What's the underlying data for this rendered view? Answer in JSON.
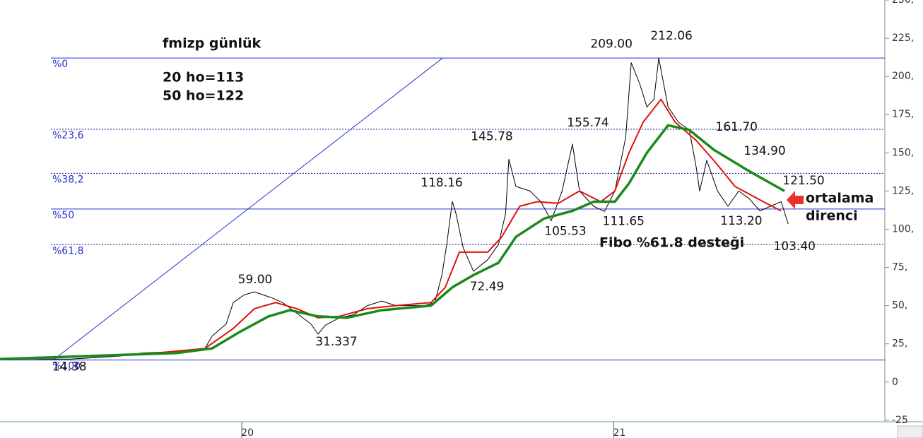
{
  "chart_data": {
    "type": "line",
    "title": "fmizp günlük",
    "notes": [
      "20 ho=113",
      "50 ho=122"
    ],
    "callouts": [
      "ortalama",
      "direnci",
      "Fibo %61.8 desteği"
    ],
    "xlim": [
      2019.35,
      2021.725
    ],
    "xticks": [
      {
        "value": 2020,
        "label": "20"
      },
      {
        "value": 2021,
        "label": "21"
      }
    ],
    "ylim": [
      -26,
      250
    ],
    "yticks": [
      {
        "value": 250,
        "label": "250,"
      },
      {
        "value": 225,
        "label": "225,"
      },
      {
        "value": 200,
        "label": "200,"
      },
      {
        "value": 175,
        "label": "175,"
      },
      {
        "value": 150,
        "label": "150,"
      },
      {
        "value": 125,
        "label": "125,"
      },
      {
        "value": 100,
        "label": "100,"
      },
      {
        "value": 75,
        "label": "75,"
      },
      {
        "value": 50,
        "label": "50,"
      },
      {
        "value": 25,
        "label": "25,"
      },
      0,
      -25
    ],
    "series": [
      {
        "color": "#000000",
        "width": 1,
        "x": [
          2019.35,
          2019.54,
          2019.673,
          2019.73,
          2019.825,
          2019.901,
          2019.92,
          2019.958,
          2019.977,
          2020.006,
          2020.034,
          2020.082,
          2020.11,
          2020.148,
          2020.186,
          2020.205,
          2020.224,
          2020.262,
          2020.3,
          2020.338,
          2020.376,
          2020.414,
          2020.452,
          2020.49,
          2020.519,
          2020.538,
          2020.551,
          2020.566,
          2020.576,
          2020.595,
          2020.623,
          2020.661,
          2020.69,
          2020.709,
          2020.718,
          2020.737,
          2020.775,
          2020.804,
          2020.832,
          2020.861,
          2020.889,
          2020.908,
          2020.946,
          2020.975,
          2021.003,
          2021.032,
          2021.047,
          2021.07,
          2021.089,
          2021.108,
          2021.121,
          2021.146,
          2021.174,
          2021.203,
          2021.222,
          2021.231,
          2021.25,
          2021.279,
          2021.307,
          2021.336,
          2021.364,
          2021.393,
          2021.421,
          2021.45,
          2021.469
        ],
        "values": [
          15,
          15,
          17,
          19,
          20,
          22,
          30,
          38,
          52,
          57,
          59,
          55,
          52,
          45,
          38,
          31.337,
          37,
          42,
          44,
          50,
          53,
          50,
          50,
          50,
          52,
          70,
          90,
          118.16,
          110,
          88,
          72.49,
          80,
          90,
          110,
          145.78,
          128,
          125,
          118,
          105.53,
          125,
          155.74,
          125,
          115,
          111.65,
          125,
          160,
          209,
          195,
          180,
          185,
          212.06,
          180,
          170,
          165,
          140,
          125,
          145,
          125,
          115,
          125,
          120,
          112,
          115,
          118,
          103.4
        ]
      },
      {
        "color": "#e01010",
        "width": 2,
        "x": [
          2019.35,
          2019.73,
          2019.901,
          2019.977,
          2020.034,
          2020.091,
          2020.148,
          2020.205,
          2020.262,
          2020.338,
          2020.414,
          2020.509,
          2020.547,
          2020.585,
          2020.661,
          2020.699,
          2020.747,
          2020.794,
          2020.851,
          2020.908,
          2020.965,
          2021.003,
          2021.041,
          2021.079,
          2021.127,
          2021.165,
          2021.222,
          2021.269,
          2021.326,
          2021.402,
          2021.45
        ],
        "values": [
          15,
          18,
          22,
          35,
          48,
          52,
          48,
          42,
          43,
          48,
          50,
          52,
          62,
          85,
          85,
          95,
          115,
          118,
          117,
          125,
          118,
          125,
          150,
          170,
          185,
          170,
          158,
          145,
          128,
          118,
          112
        ]
      },
      {
        "color": "#1a8a1a",
        "width": 3.5,
        "x": [
          2019.35,
          2019.825,
          2019.92,
          2019.996,
          2020.072,
          2020.129,
          2020.205,
          2020.281,
          2020.376,
          2020.509,
          2020.566,
          2020.623,
          2020.69,
          2020.737,
          2020.813,
          2020.889,
          2020.946,
          2021.003,
          2021.041,
          2021.089,
          2021.146,
          2021.203,
          2021.269,
          2021.364,
          2021.459
        ],
        "values": [
          15,
          19,
          22,
          33,
          43,
          47,
          43,
          42,
          47,
          50,
          62,
          70,
          78,
          95,
          107,
          112,
          118,
          118,
          130,
          150,
          168,
          165,
          152,
          138,
          125
        ]
      }
    ],
    "fib_color": "#2233cc",
    "fib_levels": [
      {
        "label": "%0",
        "value": 212.06,
        "style": "solid"
      },
      {
        "label": "%23,6",
        "value": 165.41,
        "style": "dotted"
      },
      {
        "label": "%38,2",
        "value": 136.55,
        "style": "dotted"
      },
      {
        "label": "%50",
        "value": 113.22,
        "style": "solid"
      },
      {
        "label": "%61,8",
        "value": 89.9,
        "style": "dotted"
      },
      {
        "label": "%100",
        "value": 14.38,
        "style": "solid"
      }
    ],
    "trendline": {
      "x": [
        2019.493,
        2020.54
      ],
      "y": [
        14.38,
        212.06
      ]
    },
    "annotations": [
      {
        "label": "14.38",
        "x": 2019.493,
        "y": 14.38
      },
      {
        "label": "59.00",
        "x": 2020.034,
        "y": 59
      },
      {
        "label": "31.337",
        "x": 2020.205,
        "y": 31.337
      },
      {
        "label": "72.49",
        "x": 2020.623,
        "y": 72.49
      },
      {
        "label": "118.16",
        "x": 2020.566,
        "y": 118.16
      },
      {
        "label": "145.78",
        "x": 2020.718,
        "y": 145.78
      },
      {
        "label": "105.53",
        "x": 2020.832,
        "y": 105.53
      },
      {
        "label": "155.74",
        "x": 2020.889,
        "y": 155.74
      },
      {
        "label": "111.65",
        "x": 2020.975,
        "y": 111.65
      },
      {
        "label": "209.00",
        "x": 2021.047,
        "y": 209
      },
      {
        "label": "212.06",
        "x": 2021.121,
        "y": 212.06
      },
      {
        "label": "161.70",
        "x": 2021.222,
        "y": 161.7
      },
      {
        "label": "134.90",
        "x": 2021.345,
        "y": 134.9
      },
      {
        "label": "121.50",
        "x": 2021.44,
        "y": 121.5
      },
      {
        "label": "113.20",
        "x": 2021.341,
        "y": 113.2
      },
      {
        "label": "103.40",
        "x": 2021.469,
        "y": 103.4
      }
    ]
  }
}
